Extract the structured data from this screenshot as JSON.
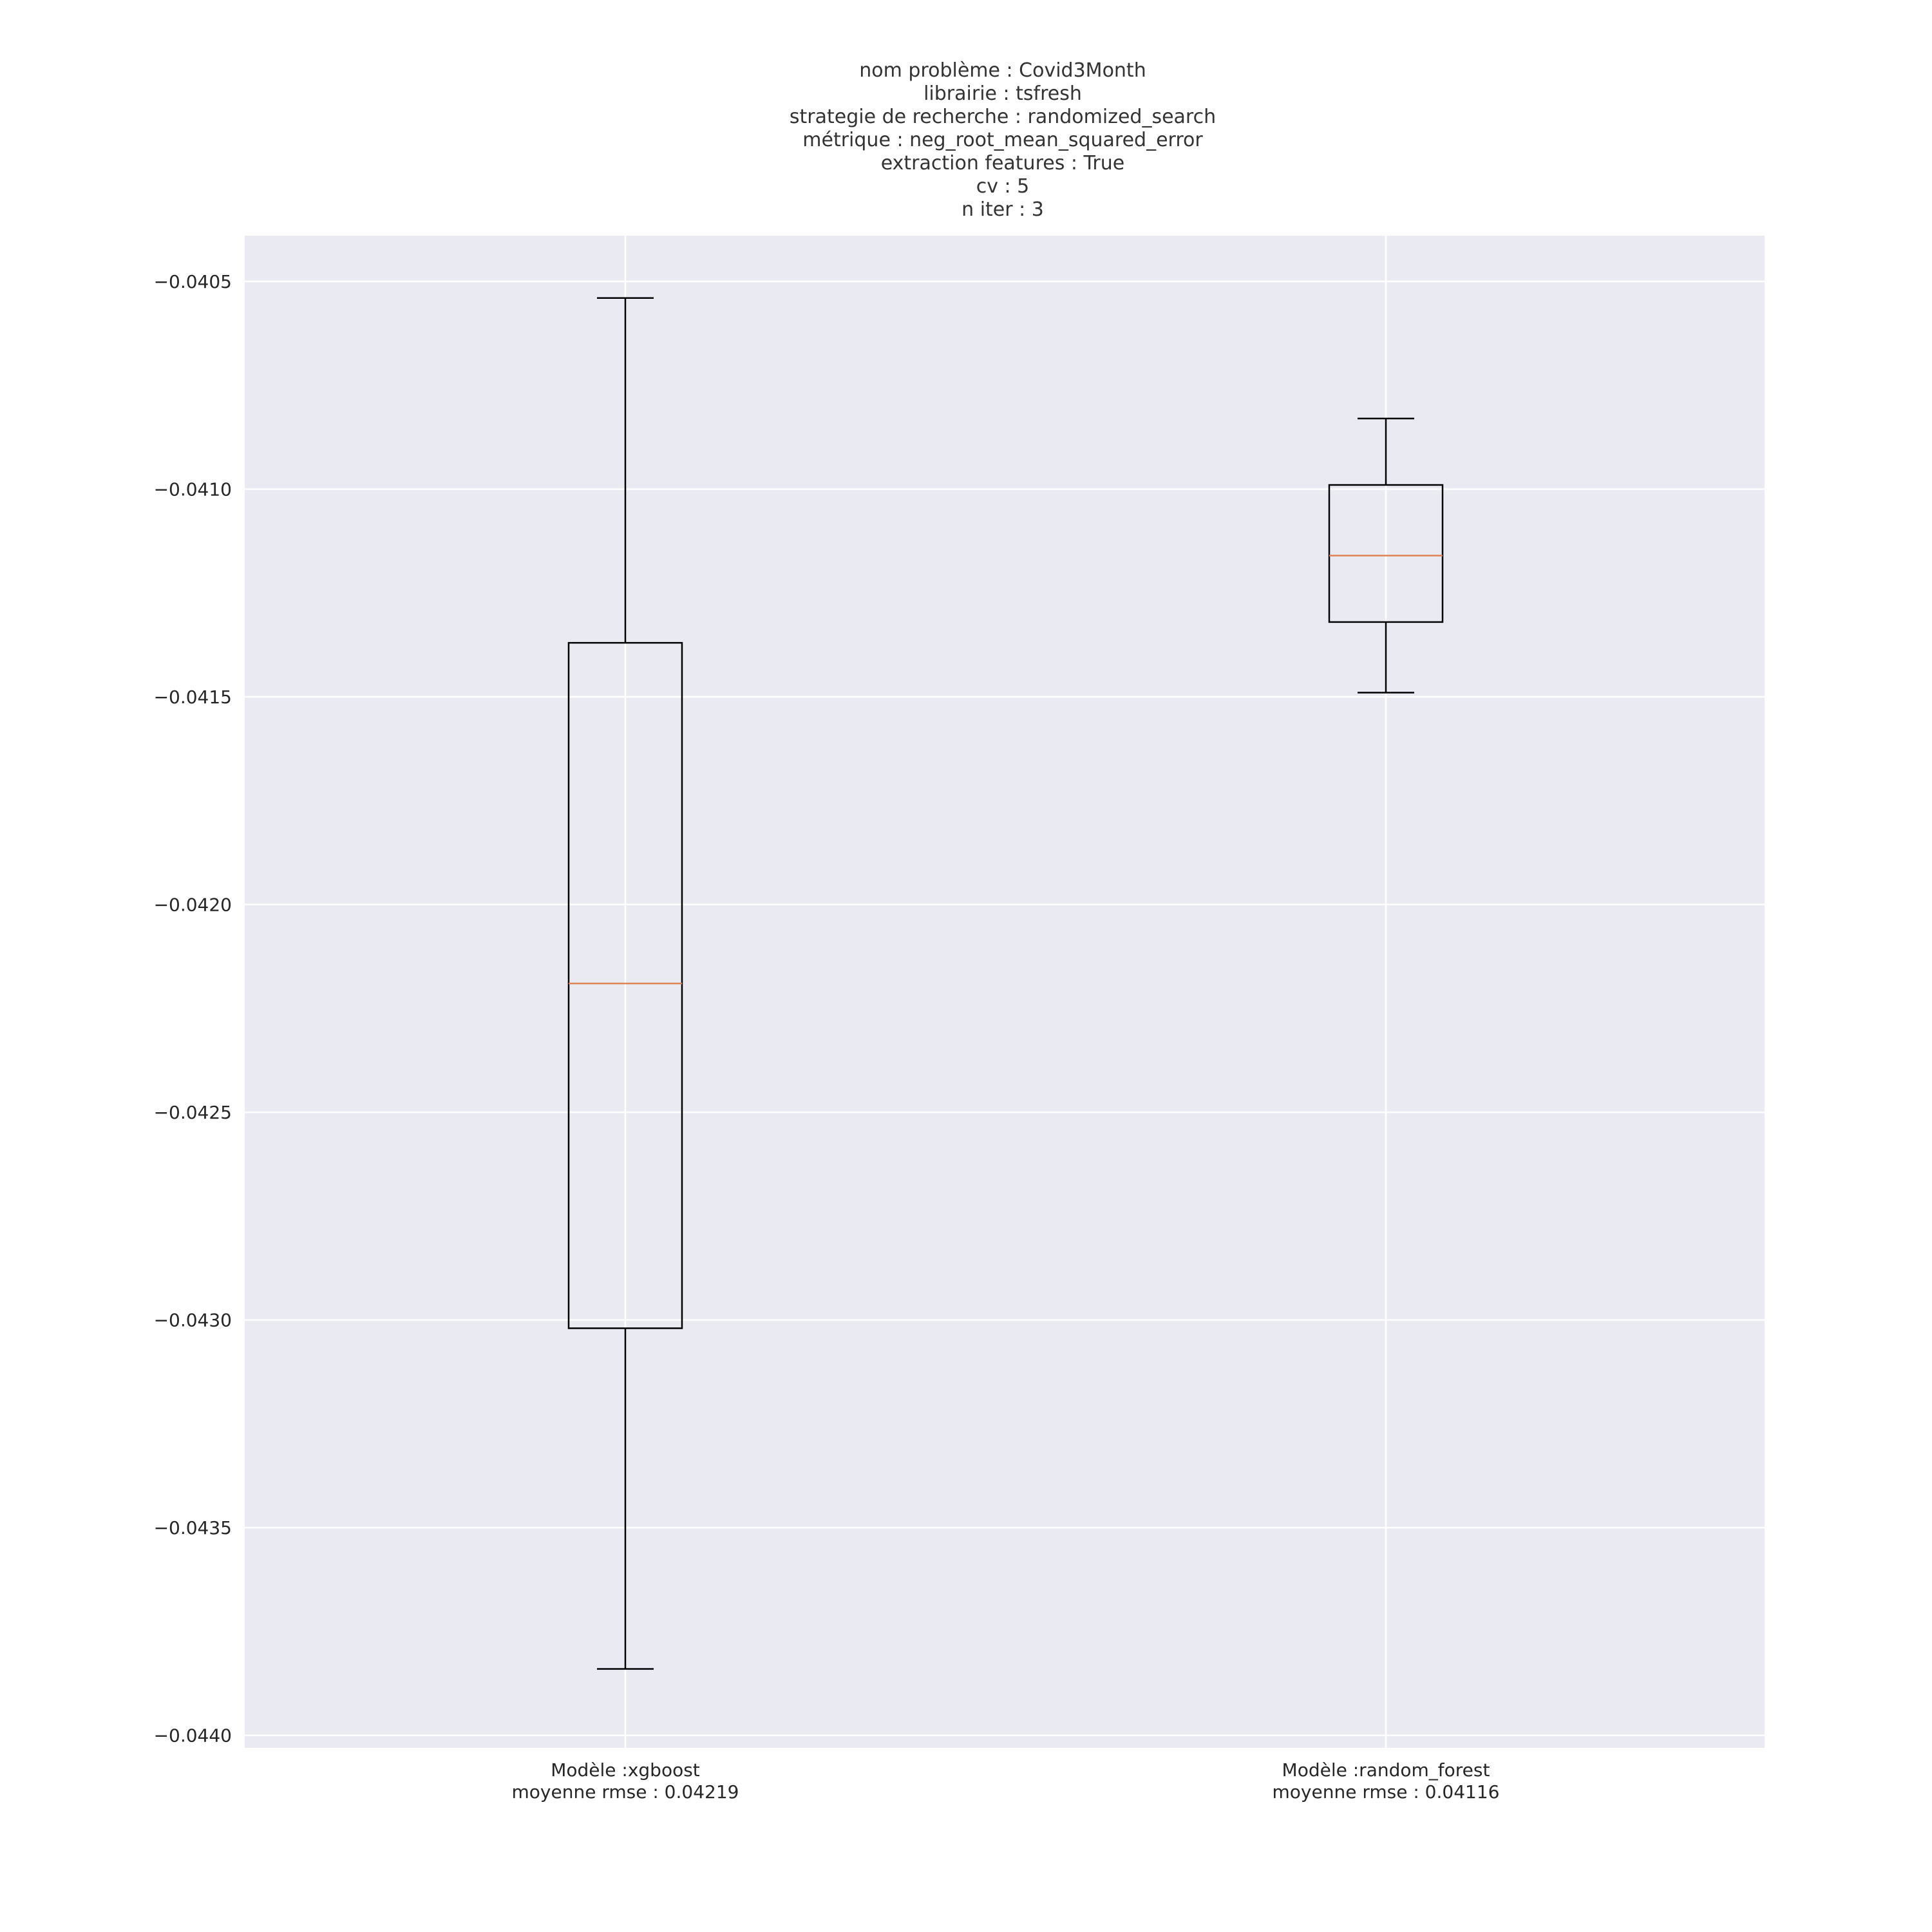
{
  "chart_data": {
    "type": "box",
    "title_lines": [
      "nom problème : Covid3Month",
      "librairie : tsfresh",
      "strategie de recherche : randomized_search",
      "métrique : neg_root_mean_squared_error",
      "extraction features : True",
      "cv : 5",
      "n iter : 3"
    ],
    "ylim": [
      -0.04403,
      -0.04039
    ],
    "yticks": [
      -0.0405,
      -0.041,
      -0.0415,
      -0.042,
      -0.0425,
      -0.043,
      -0.0435,
      -0.044
    ],
    "ytick_labels": [
      "−0.0405",
      "−0.0410",
      "−0.0415",
      "−0.0420",
      "−0.0425",
      "−0.0430",
      "−0.0435",
      "−0.0440"
    ],
    "grid": true,
    "background": "#eaeaf2",
    "box_color": "#000000",
    "median_color": "#dd8452",
    "boxes": [
      {
        "label_lines": [
          "Modèle :xgboost",
          "moyenne rmse : 0.04219"
        ],
        "whisker_low": -0.04384,
        "q1": -0.04302,
        "median": -0.04219,
        "q3": -0.04137,
        "whisker_high": -0.04054
      },
      {
        "label_lines": [
          "Modèle :random_forest",
          "moyenne rmse : 0.04116"
        ],
        "whisker_low": -0.04149,
        "q1": -0.04132,
        "median": -0.04116,
        "q3": -0.04099,
        "whisker_high": -0.04083
      }
    ]
  }
}
